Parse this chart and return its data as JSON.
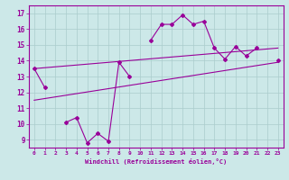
{
  "x_data": [
    0,
    1,
    2,
    3,
    4,
    5,
    6,
    7,
    8,
    9,
    10,
    11,
    12,
    13,
    14,
    15,
    16,
    17,
    18,
    19,
    20,
    21,
    22,
    23
  ],
  "main_line": [
    13.5,
    12.3,
    null,
    10.1,
    10.4,
    8.8,
    9.4,
    8.9,
    13.9,
    13.0,
    null,
    15.3,
    16.3,
    16.3,
    16.9,
    16.3,
    16.5,
    14.8,
    14.1,
    14.9,
    14.3,
    14.8,
    null,
    14.0
  ],
  "upper_line_x": [
    0,
    23
  ],
  "upper_line_y": [
    13.5,
    14.8
  ],
  "lower_line_x": [
    0,
    23
  ],
  "lower_line_y": [
    11.5,
    13.9
  ],
  "line_color": "#990099",
  "bg_color": "#cce8e8",
  "grid_color": "#aacccc",
  "xlim": [
    -0.5,
    23.5
  ],
  "ylim": [
    8.5,
    17.5
  ],
  "yticks": [
    9,
    10,
    11,
    12,
    13,
    14,
    15,
    16,
    17
  ],
  "xticks": [
    0,
    1,
    2,
    3,
    4,
    5,
    6,
    7,
    8,
    9,
    10,
    11,
    12,
    13,
    14,
    15,
    16,
    17,
    18,
    19,
    20,
    21,
    22,
    23
  ],
  "xlabel": "Windchill (Refroidissement éolien,°C)",
  "title": ""
}
